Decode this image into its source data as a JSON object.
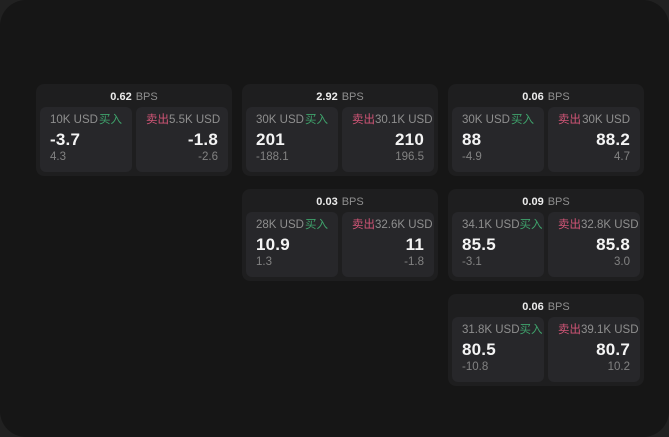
{
  "theme": {
    "outer_background": "#212121",
    "surface_background": "#161616",
    "card_background": "#1e1e1f",
    "panel_background": "#27272a",
    "buy_color": "#3fa36c",
    "sell_color": "#d25577",
    "primary_text": "#f4f4f4",
    "muted_text": "#8f8f8f"
  },
  "cards": [
    {
      "bps_value": "0.62",
      "bps_unit": "BPS",
      "buy": {
        "notional": "10K USD",
        "side_label": "买入",
        "price": "-3.7",
        "delta": "4.3"
      },
      "sell": {
        "side_label": "卖出",
        "notional": "5.5K USD",
        "price": "-1.8",
        "delta": "-2.6"
      }
    },
    {
      "bps_value": "2.92",
      "bps_unit": "BPS",
      "buy": {
        "notional": "30K USD",
        "side_label": "买入",
        "price": "201",
        "delta": "-188.1"
      },
      "sell": {
        "side_label": "卖出",
        "notional": "30.1K USD",
        "price": "210",
        "delta": "196.5"
      }
    },
    {
      "bps_value": "0.06",
      "bps_unit": "BPS",
      "buy": {
        "notional": "30K USD",
        "side_label": "买入",
        "price": "88",
        "delta": "-4.9"
      },
      "sell": {
        "side_label": "卖出",
        "notional": "30K USD",
        "price": "88.2",
        "delta": "4.7"
      }
    },
    {
      "bps_value": "0.03",
      "bps_unit": "BPS",
      "buy": {
        "notional": "28K USD",
        "side_label": "买入",
        "price": "10.9",
        "delta": "1.3"
      },
      "sell": {
        "side_label": "卖出",
        "notional": "32.6K USD",
        "price": "11",
        "delta": "-1.8"
      }
    },
    {
      "bps_value": "0.09",
      "bps_unit": "BPS",
      "buy": {
        "notional": "34.1K USD",
        "side_label": "买入",
        "price": "85.5",
        "delta": "-3.1"
      },
      "sell": {
        "side_label": "卖出",
        "notional": "32.8K USD",
        "price": "85.8",
        "delta": "3.0"
      }
    },
    {
      "bps_value": "0.06",
      "bps_unit": "BPS",
      "buy": {
        "notional": "31.8K USD",
        "side_label": "买入",
        "price": "80.5",
        "delta": "-10.8"
      },
      "sell": {
        "side_label": "卖出",
        "notional": "39.1K USD",
        "price": "80.7",
        "delta": "10.2"
      }
    }
  ]
}
